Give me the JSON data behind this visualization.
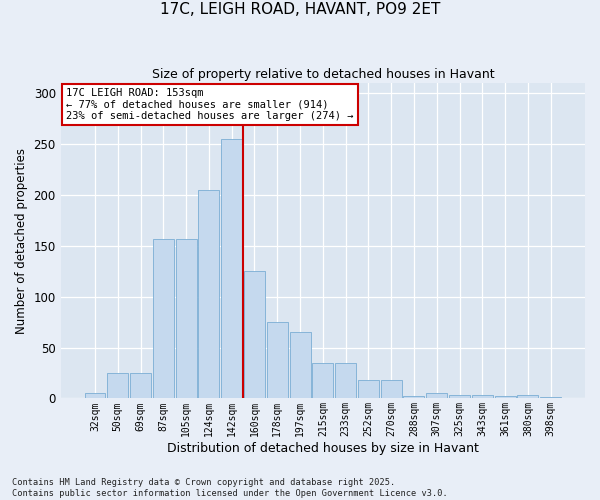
{
  "title": "17C, LEIGH ROAD, HAVANT, PO9 2ET",
  "subtitle": "Size of property relative to detached houses in Havant",
  "xlabel": "Distribution of detached houses by size in Havant",
  "ylabel": "Number of detached properties",
  "categories": [
    "32sqm",
    "50sqm",
    "69sqm",
    "87sqm",
    "105sqm",
    "124sqm",
    "142sqm",
    "160sqm",
    "178sqm",
    "197sqm",
    "215sqm",
    "233sqm",
    "252sqm",
    "270sqm",
    "288sqm",
    "307sqm",
    "325sqm",
    "343sqm",
    "361sqm",
    "380sqm",
    "398sqm"
  ],
  "values": [
    5,
    25,
    25,
    157,
    157,
    205,
    255,
    125,
    75,
    65,
    35,
    35,
    18,
    18,
    2,
    5,
    3,
    3,
    2,
    3,
    1
  ],
  "bar_color": "#c5d9ee",
  "bar_edge_color": "#7aadd4",
  "bg_color": "#dce6f1",
  "fig_bg_color": "#e8eef7",
  "grid_color": "#ffffff",
  "vline_color": "#cc0000",
  "annotation_text": "17C LEIGH ROAD: 153sqm\n← 77% of detached houses are smaller (914)\n23% of semi-detached houses are larger (274) →",
  "annotation_box_color": "#ffffff",
  "annotation_box_edge": "#cc0000",
  "footnote": "Contains HM Land Registry data © Crown copyright and database right 2025.\nContains public sector information licensed under the Open Government Licence v3.0.",
  "ylim": [
    0,
    310
  ],
  "yticks": [
    0,
    50,
    100,
    150,
    200,
    250,
    300
  ],
  "title_fontsize": 11,
  "subtitle_fontsize": 9,
  "ylabel_fontsize": 8.5,
  "xlabel_fontsize": 9
}
